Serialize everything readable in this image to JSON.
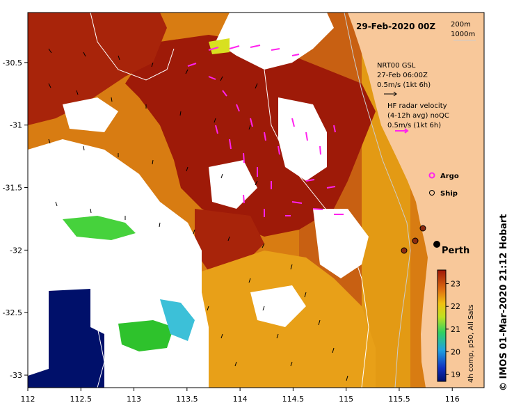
{
  "map": {
    "title": "29-Feb-2020 00Z",
    "depth_contours": [
      "200m",
      "1000m"
    ],
    "x_ticks": [
      "112",
      "112.5",
      "113",
      "113.5",
      "114",
      "114.5",
      "115",
      "115.5",
      "116"
    ],
    "y_ticks": [
      "-30.5",
      "-31",
      "-31.5",
      "-32",
      "-32.5",
      "-33"
    ],
    "xlim": [
      112,
      116.3
    ],
    "ylim": [
      -33.1,
      -30.1
    ]
  },
  "legend": {
    "gsl_title": "NRT00 GSL",
    "gsl_time": "27-Feb 06:00Z",
    "gsl_scale": "0.5m/s (1kt 6h)",
    "hf_title": "HF radar velocity",
    "hf_sub": "(4-12h avg) noQC",
    "hf_scale": "0.5m/s (1kt 6h)",
    "argo_label": "Argo",
    "ship_label": "Ship",
    "city_label": "Perth"
  },
  "colorbar": {
    "ticks": [
      "19",
      "20",
      "21",
      "22",
      "23"
    ],
    "label": "4h comp, p50, All Sats",
    "range": [
      18.7,
      23.6
    ]
  },
  "credit": "© IMOS 01-Mar-2020 21:12 Hobart",
  "colors": {
    "land": "#f8c89a",
    "sst_hot": "#a01a08",
    "sst_warm": "#cc5a14",
    "sst_mid": "#e08a10",
    "hf_vectors": "#ff22ee",
    "cold": "#00106a"
  }
}
